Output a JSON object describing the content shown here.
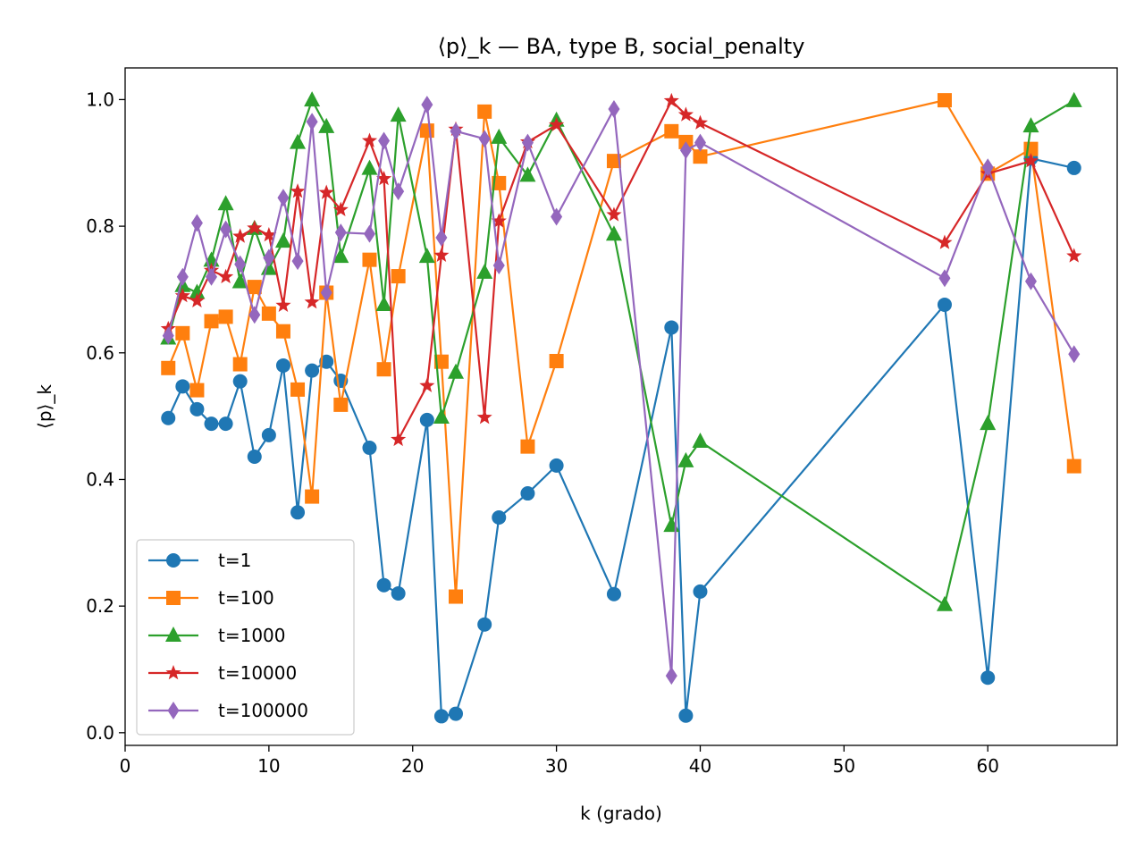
{
  "chart_data": {
    "type": "line",
    "title": "⟨p⟩_k — BA, type B, social_penalty",
    "xlabel": "k (grado)",
    "ylabel": "⟨p⟩_k",
    "xlim": [
      0,
      69
    ],
    "ylim": [
      -0.02,
      1.05
    ],
    "xticks": [
      0,
      10,
      20,
      30,
      40,
      50,
      60
    ],
    "yticks": [
      0.0,
      0.2,
      0.4,
      0.6,
      0.8,
      1.0
    ],
    "xtick_labels": [
      "0",
      "10",
      "20",
      "30",
      "40",
      "50",
      "60"
    ],
    "ytick_labels": [
      "0.0",
      "0.2",
      "0.4",
      "0.6",
      "0.8",
      "1.0"
    ],
    "grid": false,
    "legend_position": "lower-left",
    "x": [
      3,
      4,
      5,
      6,
      7,
      8,
      9,
      10,
      11,
      12,
      13,
      14,
      15,
      17,
      18,
      19,
      21,
      22,
      23,
      25,
      26,
      28,
      30,
      34,
      38,
      39,
      40,
      57,
      60,
      63,
      66
    ],
    "series": [
      {
        "name": "t=1",
        "color": "#1f77b4",
        "marker": "circle",
        "values": [
          0.497,
          0.547,
          0.511,
          0.488,
          0.488,
          0.555,
          0.436,
          0.47,
          0.58,
          0.348,
          0.572,
          0.586,
          0.556,
          0.45,
          0.233,
          0.22,
          0.494,
          0.026,
          0.03,
          0.171,
          0.34,
          0.378,
          0.422,
          0.219,
          0.64,
          0.027,
          0.223,
          0.676,
          0.087,
          0.907,
          0.892
        ]
      },
      {
        "name": "t=100",
        "color": "#ff7f0e",
        "marker": "square",
        "values": [
          0.576,
          0.631,
          0.541,
          0.65,
          0.657,
          0.582,
          0.704,
          0.662,
          0.634,
          0.542,
          0.373,
          0.695,
          0.518,
          0.747,
          0.574,
          0.721,
          0.951,
          0.586,
          0.215,
          0.981,
          0.868,
          0.452,
          0.587,
          0.903,
          0.95,
          0.933,
          0.91,
          0.999,
          0.883,
          0.922,
          0.421
        ]
      },
      {
        "name": "t=1000",
        "color": "#2ca02c",
        "marker": "triangle",
        "values": [
          0.623,
          0.706,
          0.695,
          0.746,
          0.835,
          0.712,
          0.796,
          0.733,
          0.776,
          0.932,
          0.999,
          0.957,
          0.752,
          0.891,
          0.676,
          0.975,
          0.752,
          0.498,
          0.569,
          0.727,
          0.94,
          0.88,
          0.967,
          0.787,
          0.327,
          0.429,
          0.46,
          0.202,
          0.488,
          0.958,
          0.998
        ]
      },
      {
        "name": "t=10000",
        "color": "#d62728",
        "marker": "star",
        "values": [
          0.638,
          0.69,
          0.682,
          0.73,
          0.72,
          0.784,
          0.797,
          0.786,
          0.675,
          0.855,
          0.68,
          0.853,
          0.826,
          0.935,
          0.875,
          0.463,
          0.548,
          0.754,
          0.953,
          0.498,
          0.808,
          0.933,
          0.96,
          0.818,
          0.998,
          0.976,
          0.963,
          0.774,
          0.883,
          0.903,
          0.753
        ]
      },
      {
        "name": "t=100000",
        "color": "#9467bd",
        "marker": "diamond",
        "values": [
          0.627,
          0.72,
          0.805,
          0.72,
          0.795,
          0.74,
          0.66,
          0.75,
          0.845,
          0.745,
          0.965,
          0.695,
          0.79,
          0.788,
          0.935,
          0.855,
          0.992,
          0.782,
          0.95,
          0.938,
          0.738,
          0.932,
          0.815,
          0.985,
          0.09,
          0.92,
          0.932,
          0.718,
          0.893,
          0.713,
          0.598
        ]
      }
    ]
  }
}
